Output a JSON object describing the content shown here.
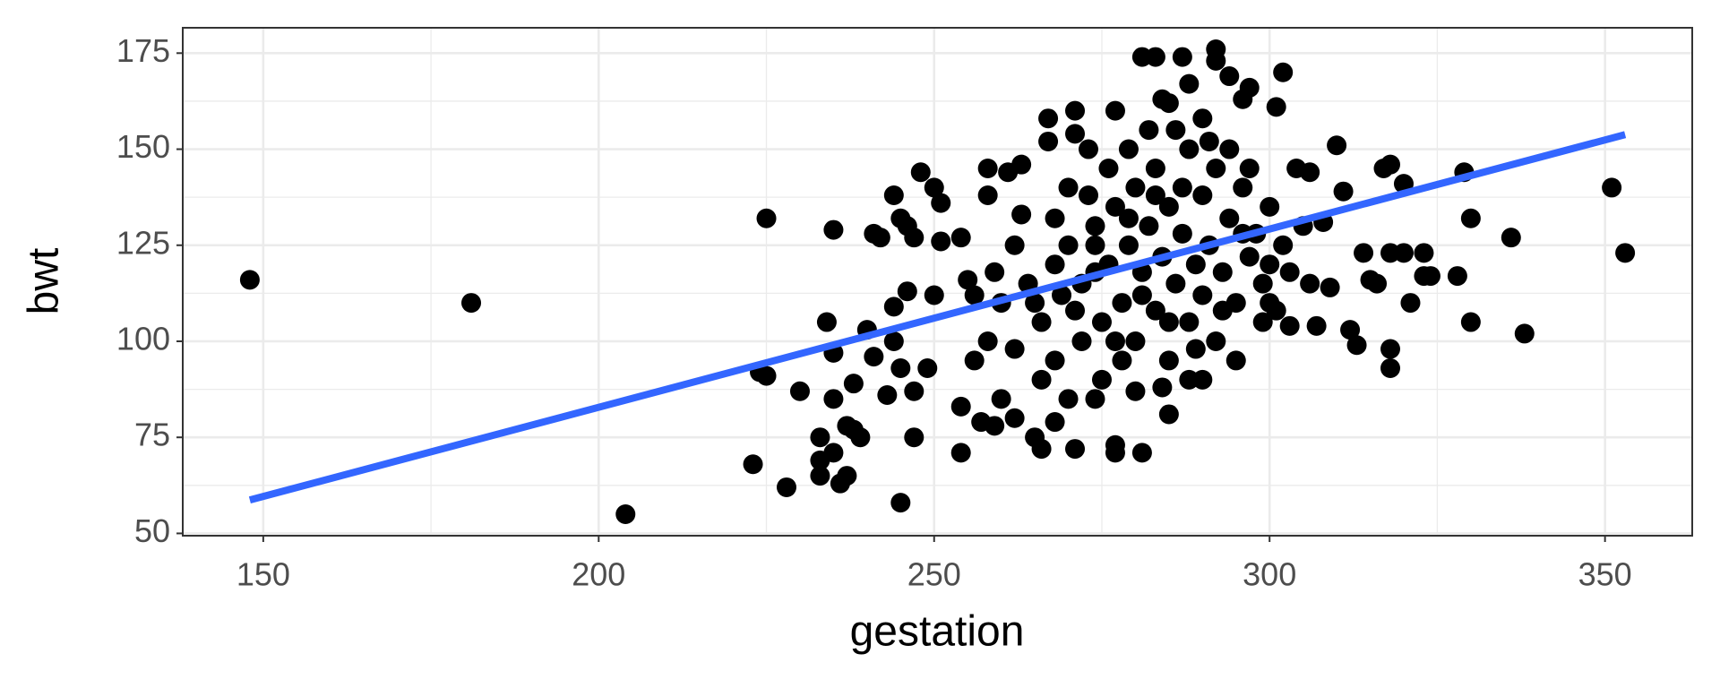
{
  "chart_data": {
    "type": "scatter",
    "x_label": "gestation",
    "y_label": "bwt",
    "xlim": [
      138,
      363
    ],
    "ylim": [
      49.4,
      181.6
    ],
    "xticks": [
      150,
      200,
      250,
      300,
      350
    ],
    "yticks": [
      50,
      75,
      100,
      125,
      150,
      175
    ],
    "grid": true,
    "color": "#000000",
    "x": [
      148,
      181,
      204,
      223,
      224,
      225,
      225,
      228,
      230,
      233,
      233,
      233,
      234,
      235,
      235,
      235,
      235,
      236,
      237,
      237,
      238,
      238,
      239,
      240,
      241,
      241,
      242,
      243,
      244,
      244,
      244,
      245,
      245,
      245,
      246,
      246,
      247,
      247,
      247,
      248,
      249,
      250,
      250,
      251,
      251,
      254,
      254,
      254,
      255,
      257,
      258,
      258,
      259,
      260,
      261,
      262,
      263,
      265,
      266,
      267,
      267,
      268,
      271,
      271,
      271,
      273,
      274,
      277,
      277,
      281,
      281,
      283,
      284,
      285,
      287,
      288,
      290,
      292,
      292,
      294,
      296,
      297,
      301,
      302,
      301,
      303,
      304,
      306,
      307,
      308,
      309,
      310,
      311,
      312,
      313,
      314,
      315,
      316,
      317,
      318,
      318,
      318,
      318,
      320,
      320,
      321,
      323,
      323,
      324,
      328,
      329,
      330,
      330,
      336,
      338,
      351,
      353,
      265,
      268,
      270,
      272,
      274,
      275,
      276,
      277,
      278,
      279,
      280,
      280,
      281,
      282,
      283,
      283,
      284,
      285,
      285,
      286,
      287,
      288,
      288,
      289,
      290,
      290,
      291,
      292,
      292,
      293,
      294,
      295,
      296,
      297,
      298,
      299,
      300,
      300,
      302,
      278,
      275,
      272,
      270,
      268,
      266,
      264,
      262,
      260,
      258,
      256,
      282,
      286,
      290,
      284,
      288,
      280,
      276,
      273,
      279,
      294,
      297,
      299,
      295,
      270,
      266,
      262,
      259,
      256,
      263,
      268,
      271,
      274,
      277,
      281,
      285,
      289,
      293,
      287,
      283,
      279,
      274,
      269,
      296,
      300,
      303,
      305,
      306,
      277,
      285,
      291
    ],
    "values": [
      116,
      110,
      55,
      68,
      92,
      132,
      91,
      62,
      87,
      75,
      69,
      65,
      105,
      71,
      85,
      97,
      129,
      63,
      78,
      65,
      77,
      89,
      75,
      103,
      96,
      128,
      127,
      86,
      100,
      109,
      138,
      132,
      58,
      93,
      130,
      113,
      75,
      87,
      127,
      144,
      93,
      112,
      140,
      126,
      136,
      71,
      83,
      127,
      116,
      79,
      145,
      138,
      78,
      85,
      144,
      80,
      146,
      75,
      72,
      158,
      152,
      79,
      160,
      72,
      154,
      150,
      85,
      73,
      71,
      174,
      71,
      174,
      163,
      81,
      174,
      167,
      90,
      176,
      173,
      169,
      163,
      166,
      161,
      170,
      108,
      104,
      145,
      144,
      104,
      131,
      114,
      151,
      139,
      103,
      99,
      123,
      116,
      115,
      145,
      123,
      146,
      98,
      93,
      141,
      123,
      110,
      123,
      117,
      117,
      117,
      144,
      132,
      105,
      127,
      102,
      140,
      123,
      110,
      120,
      125,
      115,
      130,
      105,
      120,
      135,
      110,
      125,
      140,
      100,
      118,
      130,
      145,
      108,
      122,
      135,
      95,
      115,
      128,
      150,
      105,
      120,
      138,
      112,
      125,
      145,
      100,
      118,
      132,
      110,
      140,
      122,
      128,
      115,
      135,
      120,
      125,
      95,
      90,
      100,
      140,
      95,
      105,
      115,
      125,
      110,
      100,
      95,
      155,
      155,
      158,
      88,
      90,
      87,
      145,
      138,
      150,
      150,
      145,
      105,
      95,
      85,
      90,
      98,
      118,
      112,
      133,
      132,
      108,
      118,
      100,
      112,
      105,
      98,
      108,
      140,
      138,
      132,
      125,
      112,
      128,
      110,
      118,
      130,
      115,
      160,
      162,
      152
    ],
    "fit": {
      "x": [
        148,
        353
      ],
      "values": [
        58.7,
        153.8
      ],
      "color": "#3366ff"
    }
  }
}
